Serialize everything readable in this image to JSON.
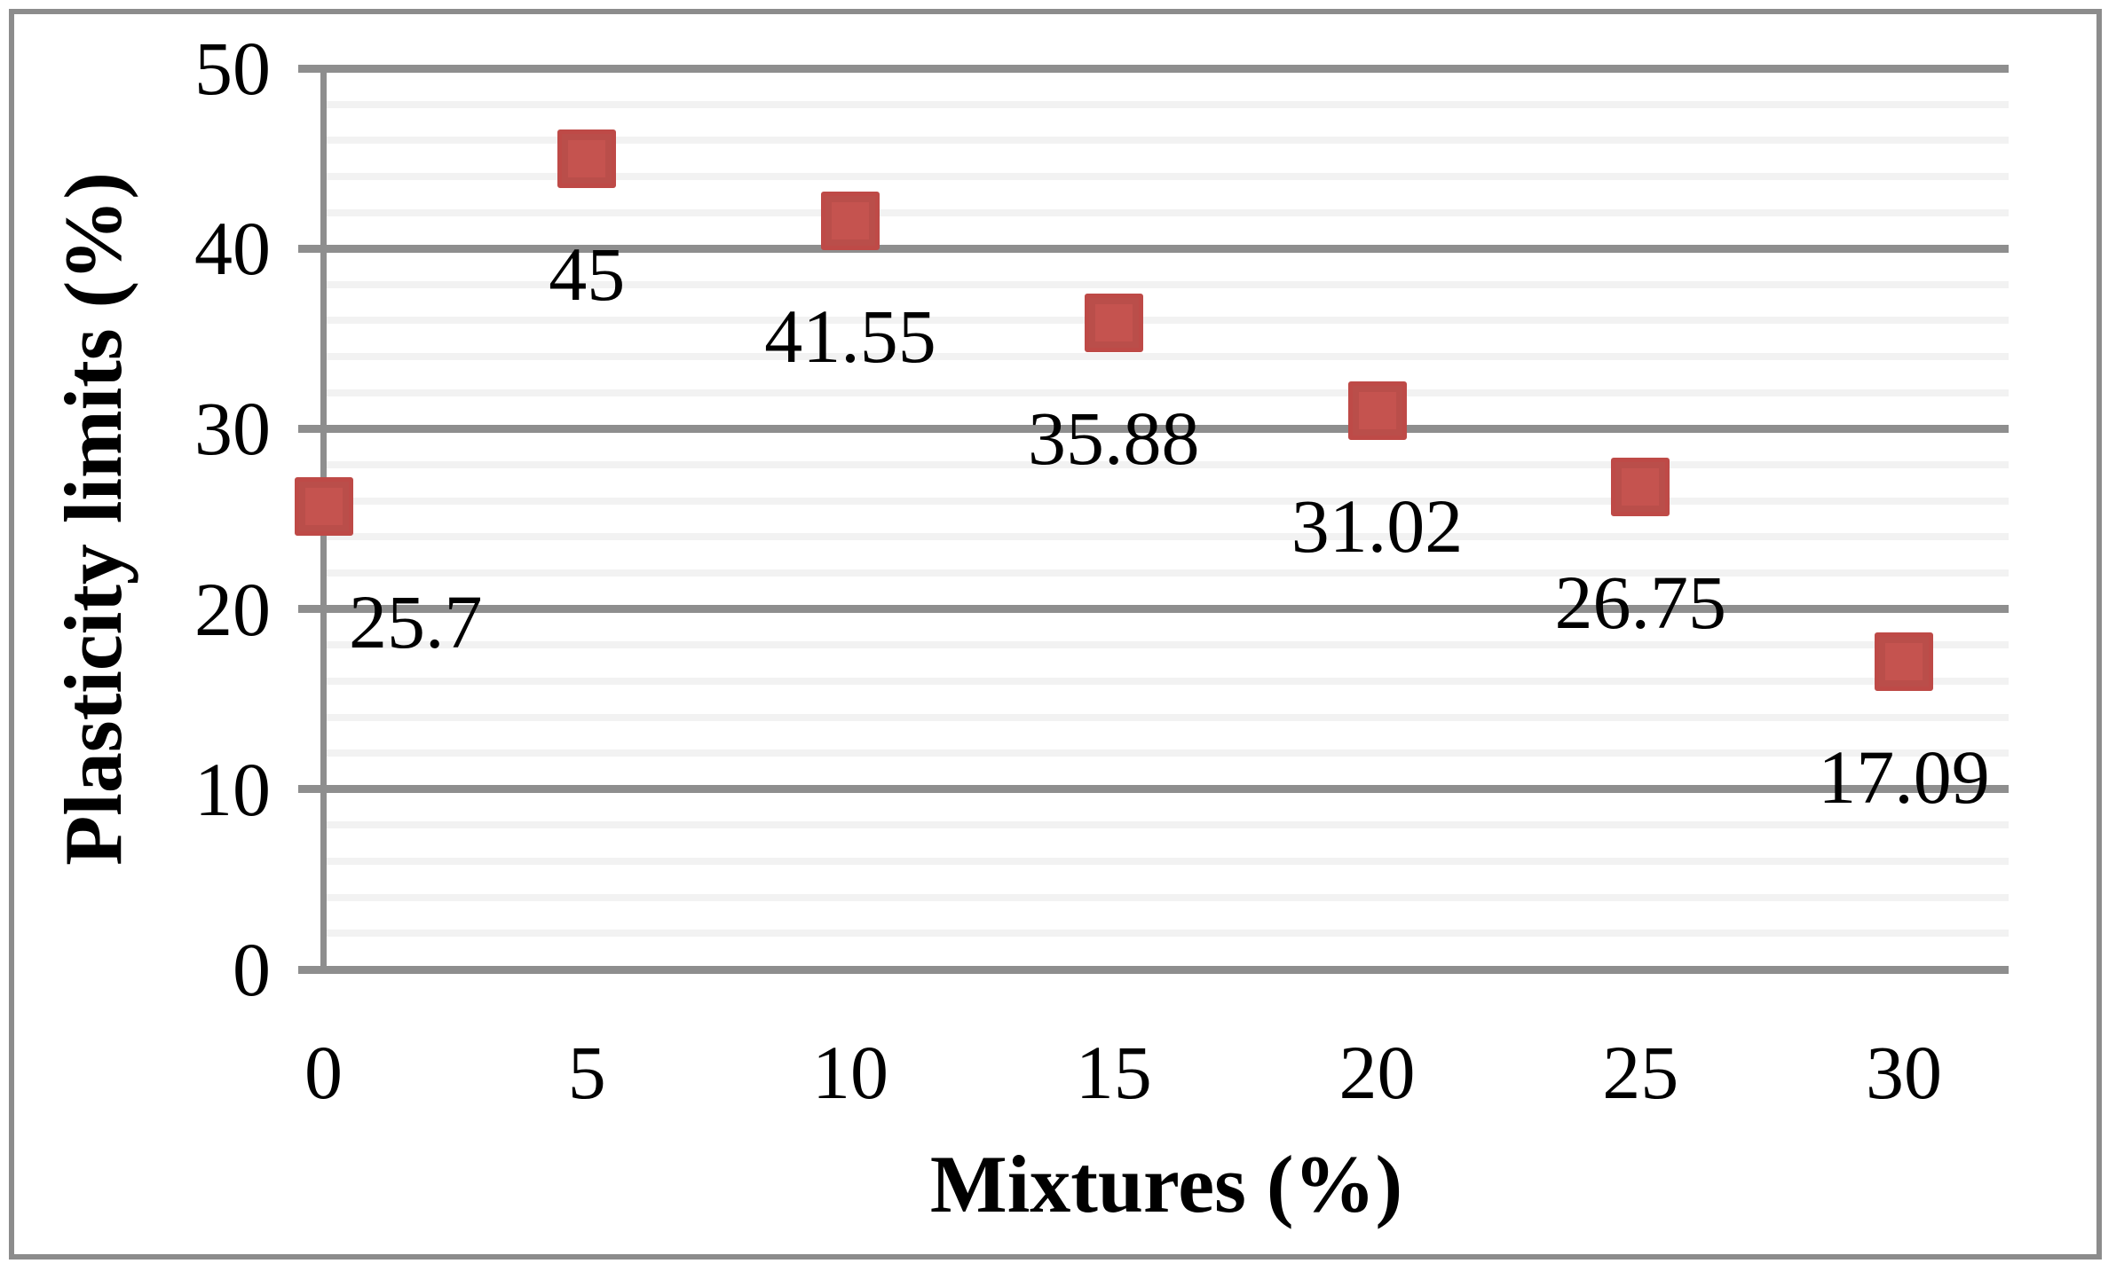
{
  "chart_data": {
    "type": "scatter",
    "title": "",
    "xlabel": "Mixtures (%)",
    "ylabel": "Plasticity limits (%)",
    "x": [
      0,
      5,
      10,
      15,
      20,
      25,
      30
    ],
    "series": [
      {
        "name": "Plasticity limits",
        "values": [
          25.7,
          45,
          41.55,
          35.88,
          31.02,
          26.75,
          17.09
        ],
        "point_labels": [
          "25.7",
          "45",
          "41.55",
          "35.88",
          "31.02",
          "26.75",
          "17.09"
        ]
      }
    ],
    "x_tick_labels": [
      "0",
      "5",
      "10",
      "15",
      "20",
      "25",
      "30"
    ],
    "y_tick_labels": [
      "0",
      "10",
      "20",
      "30",
      "40",
      "50"
    ],
    "xlim": [
      0,
      30
    ],
    "ylim": [
      0,
      50
    ],
    "y_major_step": 10,
    "y_minor_step": 2,
    "grid": "horizontal major + minor",
    "legend": "none",
    "marker_shape": "square",
    "colors": {
      "marker_fill": "#C5534F",
      "marker_border": "#BE4A47",
      "major_grid": "#8E8E8E",
      "minor_grid": "#F2F2F2",
      "axis_line": "#8E8E8E",
      "frame": "#8C8C8C",
      "text": "#000000"
    }
  }
}
